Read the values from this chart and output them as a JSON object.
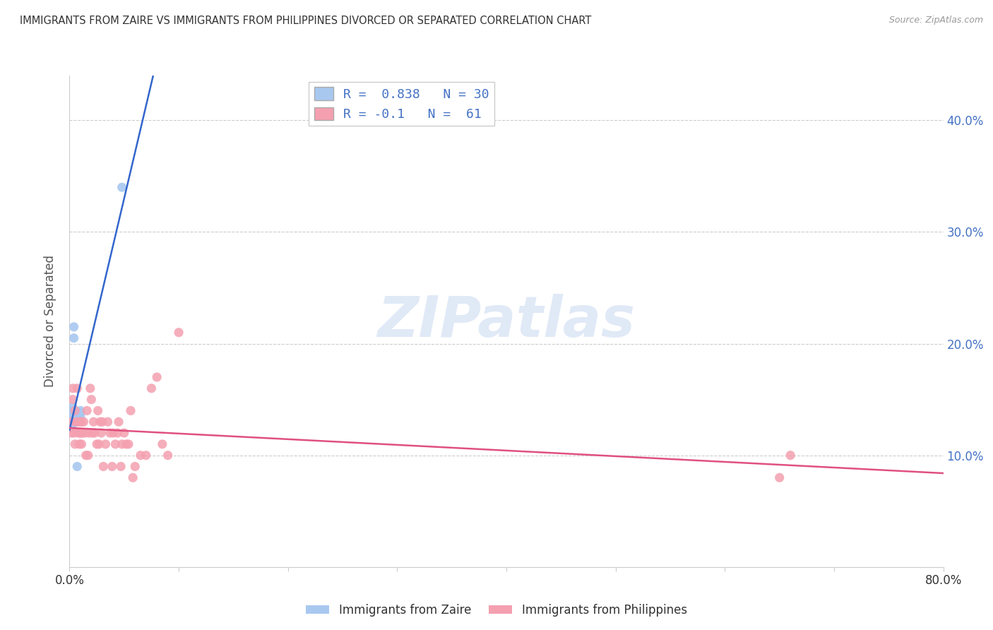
{
  "title": "IMMIGRANTS FROM ZAIRE VS IMMIGRANTS FROM PHILIPPINES DIVORCED OR SEPARATED CORRELATION CHART",
  "source": "Source: ZipAtlas.com",
  "ylabel": "Divorced or Separated",
  "xmin": 0.0,
  "xmax": 0.8,
  "ymin": 0.0,
  "ymax": 0.44,
  "yticks_right": [
    0.1,
    0.2,
    0.3,
    0.4
  ],
  "ytick_labels_right": [
    "10.0%",
    "20.0%",
    "30.0%",
    "40.0%"
  ],
  "zaire_R": 0.838,
  "zaire_N": 30,
  "philippines_R": -0.1,
  "philippines_N": 61,
  "zaire_color": "#a8c8f0",
  "philippines_color": "#f4a0b0",
  "zaire_line_color": "#3366cc",
  "philippines_line_color": "#e05080",
  "watermark": "ZIPatlas",
  "watermark_color": "#c8d8f0",
  "legend_label_zaire": "Immigrants from Zaire",
  "legend_label_philippines": "Immigrants from Philippines",
  "zaire_x": [
    0.001,
    0.001,
    0.001,
    0.002,
    0.002,
    0.002,
    0.002,
    0.002,
    0.003,
    0.003,
    0.003,
    0.003,
    0.003,
    0.003,
    0.003,
    0.003,
    0.004,
    0.004,
    0.004,
    0.004,
    0.004,
    0.005,
    0.005,
    0.005,
    0.006,
    0.007,
    0.01,
    0.01,
    0.048,
    0.01
  ],
  "zaire_y": [
    0.13,
    0.135,
    0.14,
    0.13,
    0.135,
    0.14,
    0.125,
    0.133,
    0.13,
    0.135,
    0.14,
    0.138,
    0.133,
    0.128,
    0.143,
    0.137,
    0.205,
    0.215,
    0.138,
    0.135,
    0.13,
    0.133,
    0.137,
    0.14,
    0.13,
    0.09,
    0.138,
    0.135,
    0.34,
    0.14
  ],
  "philippines_x": [
    0.001,
    0.002,
    0.003,
    0.003,
    0.004,
    0.005,
    0.005,
    0.006,
    0.007,
    0.008,
    0.008,
    0.009,
    0.01,
    0.01,
    0.01,
    0.011,
    0.011,
    0.012,
    0.013,
    0.014,
    0.015,
    0.016,
    0.017,
    0.018,
    0.019,
    0.02,
    0.021,
    0.022,
    0.023,
    0.025,
    0.026,
    0.027,
    0.028,
    0.029,
    0.03,
    0.031,
    0.033,
    0.035,
    0.037,
    0.039,
    0.04,
    0.042,
    0.044,
    0.045,
    0.047,
    0.048,
    0.05,
    0.052,
    0.054,
    0.056,
    0.058,
    0.06,
    0.065,
    0.07,
    0.075,
    0.08,
    0.085,
    0.09,
    0.1,
    0.65,
    0.66
  ],
  "philippines_y": [
    0.13,
    0.12,
    0.15,
    0.16,
    0.12,
    0.11,
    0.14,
    0.13,
    0.16,
    0.12,
    0.13,
    0.11,
    0.12,
    0.12,
    0.13,
    0.13,
    0.11,
    0.12,
    0.13,
    0.12,
    0.1,
    0.14,
    0.1,
    0.12,
    0.16,
    0.15,
    0.12,
    0.13,
    0.12,
    0.11,
    0.14,
    0.11,
    0.13,
    0.12,
    0.13,
    0.09,
    0.11,
    0.13,
    0.12,
    0.09,
    0.12,
    0.11,
    0.12,
    0.13,
    0.09,
    0.11,
    0.12,
    0.11,
    0.11,
    0.14,
    0.08,
    0.09,
    0.1,
    0.1,
    0.16,
    0.17,
    0.11,
    0.1,
    0.21,
    0.08,
    0.1
  ],
  "background_color": "#ffffff",
  "grid_color": "#cccccc"
}
